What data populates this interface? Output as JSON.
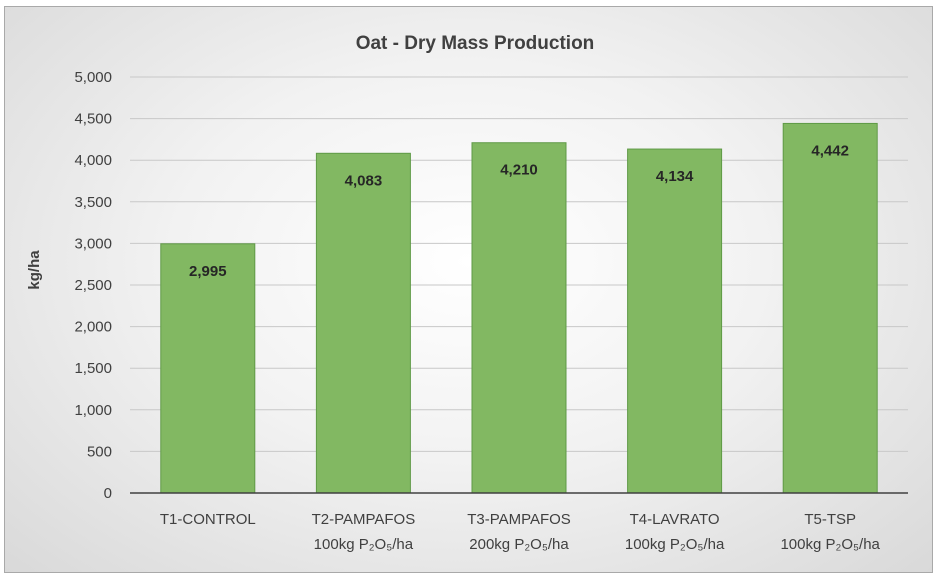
{
  "chart_data": {
    "type": "bar",
    "title": "Oat - Dry Mass Production",
    "ylabel": "kg/ha",
    "xlabel": "",
    "ylim": [
      0,
      5000
    ],
    "ytick_step": 500,
    "yticks": [
      "0",
      "500",
      "1,000",
      "1,500",
      "2,000",
      "2,500",
      "3,000",
      "3,500",
      "4,000",
      "4,500",
      "5,000"
    ],
    "grid": true,
    "legend": "none",
    "bar_color": "#82b862",
    "bar_edge_color": "#5f9a46",
    "categories": [
      {
        "line1": "T1-CONTROL",
        "line2": ""
      },
      {
        "line1": "T2-PAMPAFOS",
        "line2": "100kg P₂O₅/ha"
      },
      {
        "line1": "T3-PAMPAFOS",
        "line2": "200kg P₂O₅/ha"
      },
      {
        "line1": "T4-LAVRATO",
        "line2": "100kg P₂O₅/ha"
      },
      {
        "line1": "T5-TSP",
        "line2": "100kg P₂O₅/ha"
      }
    ],
    "values": [
      2995,
      4083,
      4210,
      4134,
      4442
    ],
    "value_labels": [
      "2,995",
      "4,083",
      "4,210",
      "4,134",
      "4,442"
    ]
  }
}
